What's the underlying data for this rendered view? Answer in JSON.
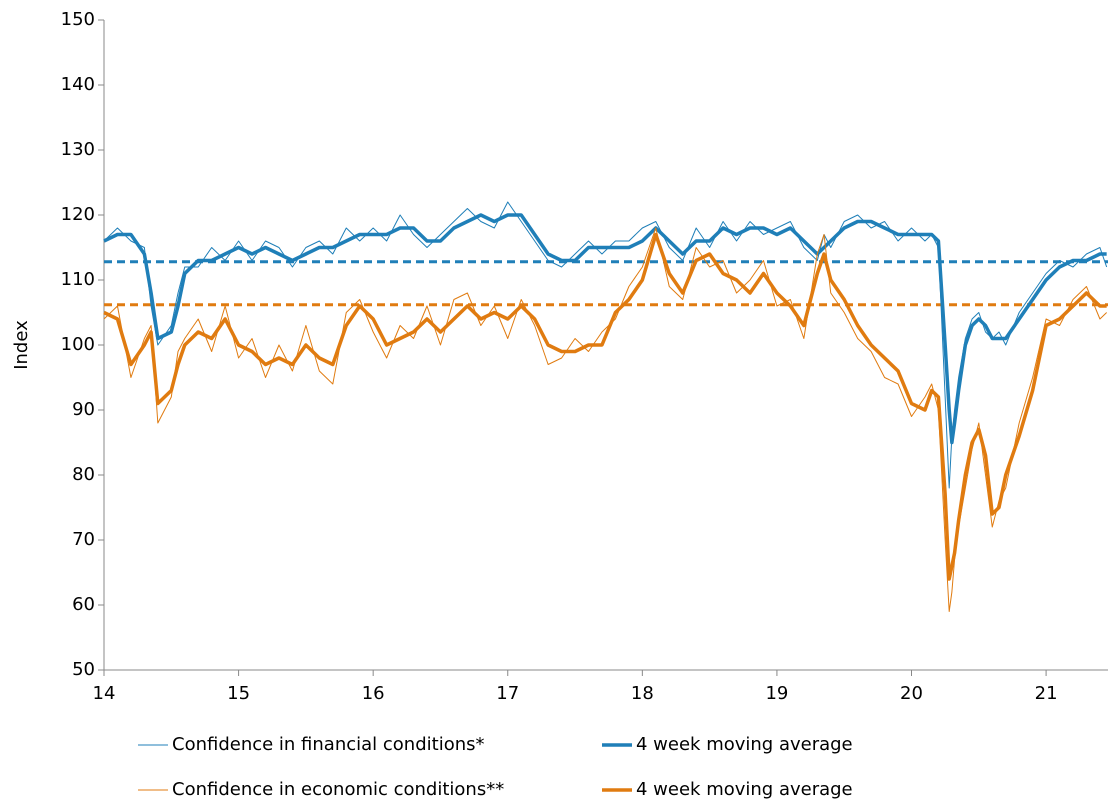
{
  "chart_data": {
    "type": "line",
    "y_label": "Index",
    "xlim": [
      14,
      21.46
    ],
    "xticks": [
      14,
      15,
      16,
      17,
      18,
      19,
      20,
      21
    ],
    "ylim": [
      50,
      150
    ],
    "yticks": [
      50,
      60,
      70,
      80,
      90,
      100,
      110,
      120,
      130,
      140,
      150
    ],
    "grid": false,
    "legend": "bottom",
    "x": [
      14.0,
      14.1,
      14.2,
      14.3,
      14.35,
      14.4,
      14.5,
      14.55,
      14.6,
      14.7,
      14.8,
      14.9,
      15.0,
      15.1,
      15.2,
      15.3,
      15.4,
      15.5,
      15.6,
      15.7,
      15.8,
      15.9,
      16.0,
      16.1,
      16.2,
      16.3,
      16.4,
      16.5,
      16.6,
      16.7,
      16.8,
      16.9,
      17.0,
      17.1,
      17.2,
      17.3,
      17.4,
      17.5,
      17.6,
      17.7,
      17.8,
      17.9,
      18.0,
      18.1,
      18.2,
      18.3,
      18.4,
      18.5,
      18.6,
      18.7,
      18.8,
      18.9,
      19.0,
      19.1,
      19.2,
      19.3,
      19.35,
      19.4,
      19.5,
      19.6,
      19.7,
      19.8,
      19.9,
      20.0,
      20.1,
      20.15,
      20.2,
      20.25,
      20.28,
      20.3,
      20.32,
      20.35,
      20.4,
      20.45,
      20.5,
      20.55,
      20.6,
      20.65,
      20.7,
      20.8,
      20.9,
      21.0,
      21.1,
      21.2,
      21.3,
      21.4,
      21.45
    ],
    "series": [
      {
        "name": "Confidence in financial conditions*",
        "color": "#1f7fb8",
        "linewidth": 1,
        "values": [
          116,
          118,
          116,
          115,
          106,
          100,
          103,
          108,
          112,
          112,
          115,
          113,
          116,
          113,
          116,
          115,
          112,
          115,
          116,
          114,
          118,
          116,
          118,
          116,
          120,
          117,
          115,
          117,
          119,
          121,
          119,
          118,
          122,
          119,
          116,
          113,
          112,
          114,
          116,
          114,
          116,
          116,
          118,
          119,
          115,
          113,
          118,
          115,
          119,
          116,
          119,
          117,
          118,
          119,
          115,
          113,
          117,
          115,
          119,
          120,
          118,
          119,
          116,
          118,
          116,
          117,
          115,
          92,
          78,
          86,
          90,
          95,
          101,
          104,
          105,
          102,
          101,
          102,
          100,
          105,
          108,
          111,
          113,
          112,
          114,
          115,
          112
        ]
      },
      {
        "name": "4 week moving average",
        "color": "#1f7fb8",
        "linewidth": 3.5,
        "values": [
          116,
          117,
          117,
          114,
          108,
          101,
          102,
          106,
          111,
          113,
          113,
          114,
          115,
          114,
          115,
          114,
          113,
          114,
          115,
          115,
          116,
          117,
          117,
          117,
          118,
          118,
          116,
          116,
          118,
          119,
          120,
          119,
          120,
          120,
          117,
          114,
          113,
          113,
          115,
          115,
          115,
          115,
          116,
          118,
          116,
          114,
          116,
          116,
          118,
          117,
          118,
          118,
          117,
          118,
          116,
          114,
          115,
          116,
          118,
          119,
          119,
          118,
          117,
          117,
          117,
          117,
          116,
          100,
          90,
          85,
          88,
          93,
          100,
          103,
          104,
          103,
          101,
          101,
          101,
          104,
          107,
          110,
          112,
          113,
          113,
          114,
          114
        ]
      },
      {
        "name": "Confidence in economic conditions**",
        "color": "#e07b10",
        "linewidth": 1,
        "values": [
          104,
          106,
          95,
          101,
          103,
          88,
          92,
          99,
          101,
          104,
          99,
          106,
          98,
          101,
          95,
          100,
          96,
          103,
          96,
          94,
          105,
          107,
          102,
          98,
          103,
          101,
          106,
          100,
          107,
          108,
          103,
          106,
          101,
          107,
          103,
          97,
          98,
          101,
          99,
          102,
          104,
          109,
          112,
          118,
          109,
          107,
          115,
          112,
          113,
          108,
          110,
          113,
          106,
          107,
          101,
          114,
          117,
          108,
          105,
          101,
          99,
          95,
          94,
          89,
          92,
          94,
          90,
          70,
          59,
          62,
          67,
          72,
          78,
          84,
          88,
          80,
          72,
          76,
          78,
          88,
          95,
          104,
          103,
          107,
          109,
          104,
          105
        ]
      },
      {
        "name": "4 week moving average",
        "color": "#e07b10",
        "linewidth": 3.5,
        "values": [
          105,
          104,
          97,
          100,
          102,
          91,
          93,
          97,
          100,
          102,
          101,
          104,
          100,
          99,
          97,
          98,
          97,
          100,
          98,
          97,
          103,
          106,
          104,
          100,
          101,
          102,
          104,
          102,
          104,
          106,
          104,
          105,
          104,
          106,
          104,
          100,
          99,
          99,
          100,
          100,
          105,
          107,
          110,
          117,
          111,
          108,
          113,
          114,
          111,
          110,
          108,
          111,
          108,
          106,
          103,
          111,
          114,
          110,
          107,
          103,
          100,
          98,
          96,
          91,
          90,
          93,
          92,
          77,
          64,
          66,
          68,
          73,
          80,
          85,
          87,
          83,
          74,
          75,
          80,
          86,
          93,
          103,
          104,
          106,
          108,
          106,
          106
        ]
      }
    ],
    "hlines": [
      {
        "value": 112.8,
        "color": "#1f7fb8",
        "dashed": true
      },
      {
        "value": 106.2,
        "color": "#e07b10",
        "dashed": true
      }
    ]
  }
}
